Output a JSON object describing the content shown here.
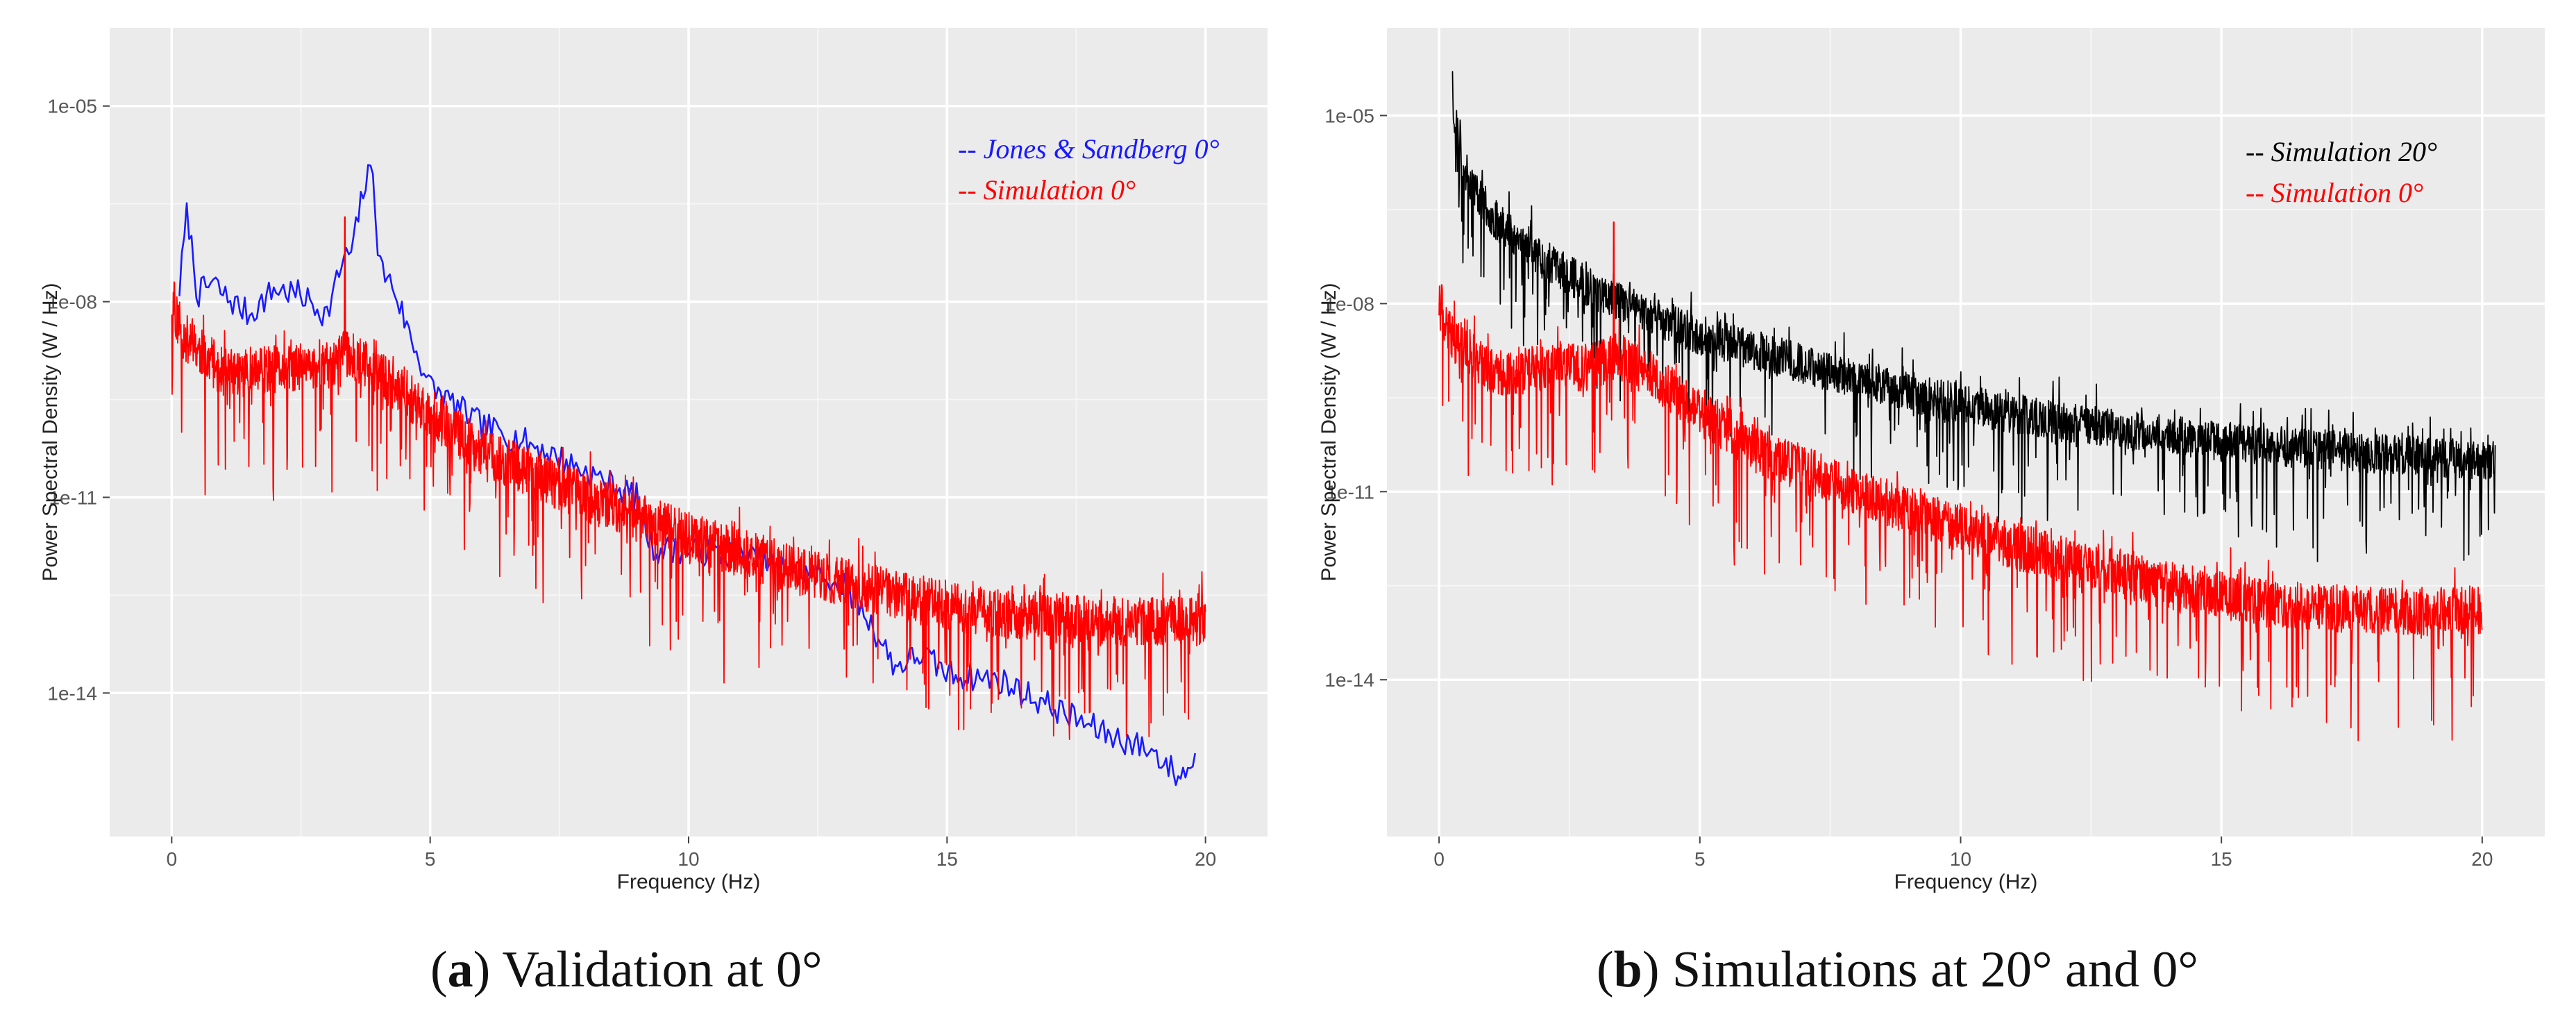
{
  "chart_data": [
    {
      "panel": "a",
      "type": "line",
      "title": "",
      "xlabel": "Frequency (Hz)",
      "ylabel": "Power Spectral Density  (W / Hz)",
      "xlim": [
        -1.2,
        21.2
      ],
      "ylim_log10": [
        -16.2,
        -3.8
      ],
      "yscale": "log",
      "x_ticks": [
        0,
        5,
        10,
        15,
        20
      ],
      "x_tick_labels": [
        "0",
        "5",
        "10",
        "15",
        "20"
      ],
      "y_ticks_log10": [
        -5,
        -8,
        -11,
        -14
      ],
      "y_tick_labels": [
        "1e-05",
        "1e-08",
        "1e-11",
        "1e-14"
      ],
      "grid": true,
      "legend_position": "top-right",
      "series": [
        {
          "name": "Jones & Sandberg 0°",
          "legend_label": "-- Jones & Sandberg 0°",
          "color": "#1a1aff",
          "kind": "smooth-noisy",
          "x": [
            0.15,
            0.3,
            0.5,
            0.8,
            1.0,
            1.5,
            2.0,
            2.5,
            3.0,
            3.3,
            3.5,
            3.7,
            3.9,
            4.0,
            4.3,
            4.6,
            5.0,
            5.5,
            6.0,
            7.0,
            8.0,
            9.0,
            9.3,
            10.0,
            11.0,
            12.0,
            13.0,
            13.5,
            14.0,
            14.5,
            15.0,
            16.0,
            17.0,
            18.0,
            19.0,
            19.5,
            19.8
          ],
          "log10_values": [
            -7.8,
            -6.6,
            -7.9,
            -7.7,
            -7.9,
            -8.2,
            -7.8,
            -7.9,
            -8.2,
            -7.4,
            -7.2,
            -6.3,
            -5.9,
            -7.4,
            -7.8,
            -8.5,
            -9.3,
            -9.6,
            -9.9,
            -10.2,
            -10.6,
            -11.0,
            -11.8,
            -11.8,
            -11.9,
            -12.1,
            -12.3,
            -12.9,
            -13.6,
            -13.4,
            -13.7,
            -13.8,
            -14.2,
            -14.6,
            -14.9,
            -15.3,
            -15.0
          ],
          "noise_amp": 0.22,
          "seed": 7
        },
        {
          "name": "Simulation 0°",
          "legend_label": "-- Simulation 0°",
          "color": "#ff0000",
          "kind": "dense-noisy",
          "x_range": [
            0.0,
            20.0
          ],
          "trend_x": [
            0,
            0.2,
            1,
            3,
            3.4,
            4,
            5,
            6,
            8,
            10,
            12,
            14,
            16,
            18,
            20
          ],
          "trend_log10": [
            -8.0,
            -8.5,
            -9.1,
            -9.0,
            -8.8,
            -9.1,
            -9.7,
            -10.3,
            -11.0,
            -11.6,
            -12.1,
            -12.5,
            -12.8,
            -12.9,
            -12.9
          ],
          "spikes": [
            {
              "x": 3.35,
              "log10": -6.7
            },
            {
              "x": 0.05,
              "log10": -7.7
            }
          ],
          "noise_amp": 0.38,
          "dip_amp": 1.8,
          "seed": 11
        }
      ]
    },
    {
      "panel": "b",
      "type": "line",
      "title": "",
      "xlabel": "Frequency (Hz)",
      "ylabel": "Power Spectral Density  (W / Hz)",
      "xlim": [
        -1.0,
        21.2
      ],
      "ylim_log10": [
        -16.5,
        -3.6
      ],
      "yscale": "log",
      "x_ticks": [
        0,
        5,
        10,
        15,
        20
      ],
      "x_tick_labels": [
        "0",
        "5",
        "10",
        "15",
        "20"
      ],
      "y_ticks_log10": [
        -5,
        -8,
        -11,
        -14
      ],
      "y_tick_labels": [
        "1e-05",
        "1e-08",
        "1e-11",
        "1e-14"
      ],
      "grid": true,
      "legend_position": "top-right",
      "series": [
        {
          "name": "Simulation 20°",
          "legend_label": "-- Simulation 20°",
          "color": "#000000",
          "kind": "dense-noisy",
          "x_range": [
            0.25,
            20.25
          ],
          "trend_x": [
            0.25,
            0.5,
            1.0,
            2.0,
            3.0,
            5.0,
            8.0,
            10.0,
            12.0,
            15.0,
            18.0,
            20.25
          ],
          "trend_log10": [
            -4.8,
            -5.9,
            -6.6,
            -7.3,
            -7.8,
            -8.5,
            -9.2,
            -9.6,
            -9.9,
            -10.2,
            -10.4,
            -10.5
          ],
          "spikes": [
            {
              "x": 0.25,
              "log10": -4.3
            }
          ],
          "noise_amp": 0.32,
          "dip_amp": 1.5,
          "seed": 23
        },
        {
          "name": "Simulation 0°",
          "legend_label": "-- Simulation 0°",
          "color": "#ff0000",
          "kind": "dense-noisy",
          "x_range": [
            0.0,
            20.0
          ],
          "trend_x": [
            0,
            0.2,
            1,
            3,
            3.4,
            4,
            5,
            6,
            8,
            10,
            12,
            14,
            16,
            18,
            20
          ],
          "trend_log10": [
            -8.0,
            -8.5,
            -9.1,
            -9.0,
            -8.8,
            -9.1,
            -9.7,
            -10.3,
            -11.0,
            -11.6,
            -12.1,
            -12.5,
            -12.8,
            -12.9,
            -12.9
          ],
          "spikes": [
            {
              "x": 3.35,
              "log10": -6.7
            },
            {
              "x": 0.05,
              "log10": -7.7
            }
          ],
          "noise_amp": 0.38,
          "dip_amp": 1.8,
          "seed": 41
        }
      ]
    }
  ],
  "captions": [
    {
      "letter": "a",
      "text": " Validation at 0°"
    },
    {
      "letter": "b",
      "text": " Simulations at 20° and 0°"
    }
  ]
}
